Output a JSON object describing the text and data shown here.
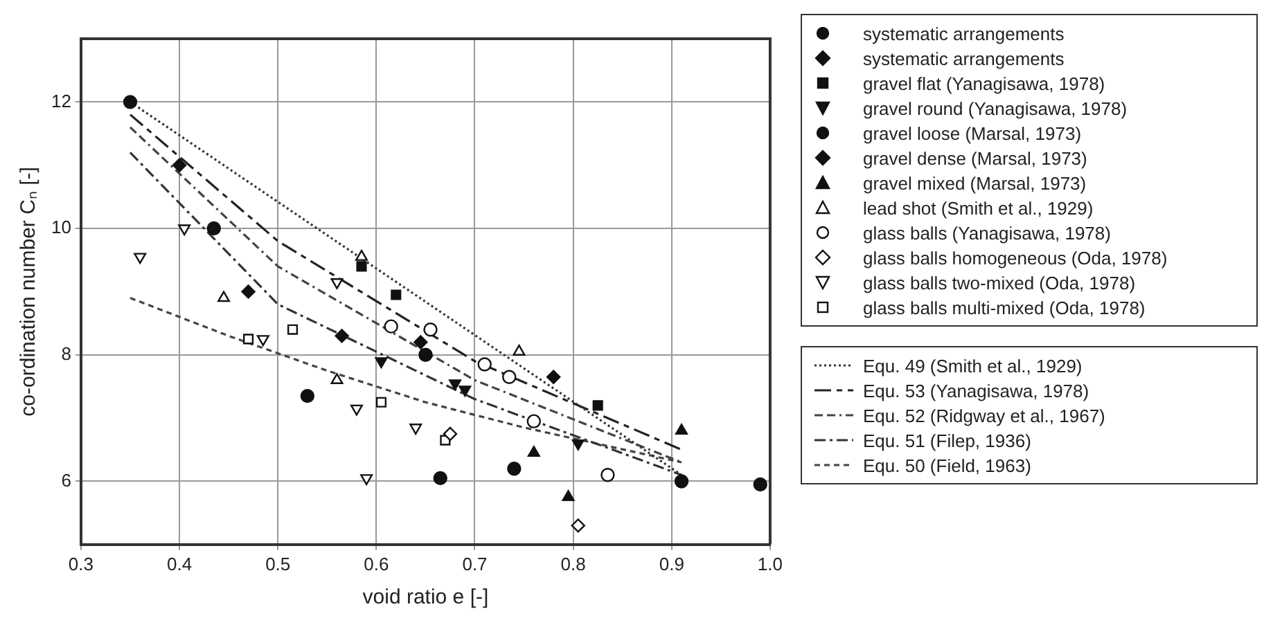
{
  "chart_data": {
    "type": "scatter",
    "xlabel": "void ratio e [-]",
    "ylabel": "co-ordination number Cₙ [-]",
    "xlim": [
      0.3,
      1.0
    ],
    "ylim": [
      5,
      13
    ],
    "xticks": [
      {
        "value": 0.3,
        "label": "0.3"
      },
      {
        "value": 0.4,
        "label": "0.4"
      },
      {
        "value": 0.5,
        "label": "0.5"
      },
      {
        "value": 0.6,
        "label": "0.6"
      },
      {
        "value": 0.7,
        "label": "0.7"
      },
      {
        "value": 0.8,
        "label": "0.8"
      },
      {
        "value": 0.9,
        "label": "0.9"
      },
      {
        "value": 1.0,
        "label": "1.0"
      }
    ],
    "yticks": [
      6,
      8,
      10,
      12
    ],
    "grid": true,
    "legend": "right",
    "series": [
      {
        "name": "systematic arrangements",
        "color": "#111111",
        "marker": "circle",
        "x": [
          0.35,
          0.435,
          0.65,
          0.91
        ],
        "values": [
          12,
          10,
          8,
          6
        ]
      },
      {
        "name": "systematic arrangements",
        "color": "#111111",
        "marker": "diamond",
        "x": [
          0.4,
          0.47
        ],
        "values": [
          11,
          9
        ]
      },
      {
        "name": "gravel flat (Yanagisawa, 1978)",
        "color": "#111111",
        "marker": "square",
        "x": [
          0.585,
          0.62,
          0.825
        ],
        "values": [
          9.4,
          8.95,
          7.2
        ]
      },
      {
        "name": "gravel round (Yanagisawa, 1978)",
        "color": "#111111",
        "marker": "triangle-down",
        "x": [
          0.605,
          0.68,
          0.69,
          0.805
        ],
        "values": [
          7.9,
          7.55,
          7.45,
          6.6
        ]
      },
      {
        "name": "gravel loose (Marsal, 1973)",
        "color": "#111111",
        "marker": "circle",
        "x": [
          0.53,
          0.665,
          0.74,
          0.99
        ],
        "values": [
          7.35,
          6.05,
          6.2,
          5.95
        ]
      },
      {
        "name": "gravel dense (Marsal, 1973)",
        "color": "#111111",
        "marker": "diamond",
        "x": [
          0.565,
          0.645,
          0.78
        ],
        "values": [
          8.3,
          8.2,
          7.65
        ]
      },
      {
        "name": "gravel mixed (Marsal, 1973)",
        "color": "#111111",
        "marker": "triangle",
        "x": [
          0.76,
          0.795,
          0.91
        ],
        "values": [
          6.45,
          5.75,
          6.8
        ]
      },
      {
        "name": "lead shot (Smith et al., 1929)",
        "color": "#111111",
        "marker": "triangle-open",
        "x": [
          0.445,
          0.56,
          0.585,
          0.745
        ],
        "values": [
          8.9,
          7.6,
          9.55,
          8.05
        ]
      },
      {
        "name": "glass balls (Yanagisawa, 1978)",
        "color": "#111111",
        "marker": "circle-open",
        "x": [
          0.615,
          0.655,
          0.71,
          0.735,
          0.76,
          0.835
        ],
        "values": [
          8.45,
          8.4,
          7.85,
          7.65,
          6.95,
          6.1
        ]
      },
      {
        "name": "glass balls homogeneous (Oda, 1978)",
        "color": "#111111",
        "marker": "diamond-open",
        "x": [
          0.675,
          0.805
        ],
        "values": [
          6.75,
          5.3
        ]
      },
      {
        "name": "glass balls two-mixed (Oda, 1978)",
        "color": "#111111",
        "marker": "triangle-down-open",
        "x": [
          0.36,
          0.405,
          0.485,
          0.56,
          0.58,
          0.59,
          0.64
        ],
        "values": [
          9.55,
          10,
          8.25,
          9.15,
          7.15,
          6.05,
          6.85
        ]
      },
      {
        "name": "glass balls multi-mixed (Oda, 1978)",
        "color": "#111111",
        "marker": "square-open",
        "x": [
          0.47,
          0.515,
          0.605,
          0.67
        ],
        "values": [
          8.25,
          8.4,
          7.25,
          6.65
        ]
      },
      {
        "name": "Equ. 49 (Smith et al., 1929)",
        "type": "line",
        "color": "#333333",
        "line_style": "dotted",
        "x": [
          0.35,
          0.91
        ],
        "values": [
          12,
          6.1
        ]
      },
      {
        "name": "Equ. 53 (Yanagisawa, 1978)",
        "type": "line",
        "color": "#222222",
        "line_style": "long-dashed",
        "x": [
          0.35,
          0.5,
          0.7,
          0.91
        ],
        "values": [
          11.8,
          9.8,
          7.9,
          6.5
        ]
      },
      {
        "name": "Equ. 52 (Ridgway et al., 1967)",
        "type": "line",
        "color": "#444444",
        "line_style": "dash-dash-dot",
        "x": [
          0.35,
          0.5,
          0.7,
          0.91
        ],
        "values": [
          11.6,
          9.4,
          7.6,
          6.3
        ]
      },
      {
        "name": "Equ. 51 (Filep, 1936)",
        "type": "line",
        "color": "#333333",
        "line_style": "dash-dot",
        "x": [
          0.35,
          0.5,
          0.7,
          0.91
        ],
        "values": [
          11.2,
          8.8,
          7.3,
          6.1
        ]
      },
      {
        "name": "Equ. 50 (Field, 1963)",
        "type": "line",
        "color": "#444444",
        "line_style": "dashed",
        "x": [
          0.35,
          0.45,
          0.55,
          0.65,
          0.75,
          0.91
        ],
        "values": [
          8.9,
          8.3,
          7.75,
          7.25,
          6.85,
          6.3
        ]
      }
    ]
  }
}
